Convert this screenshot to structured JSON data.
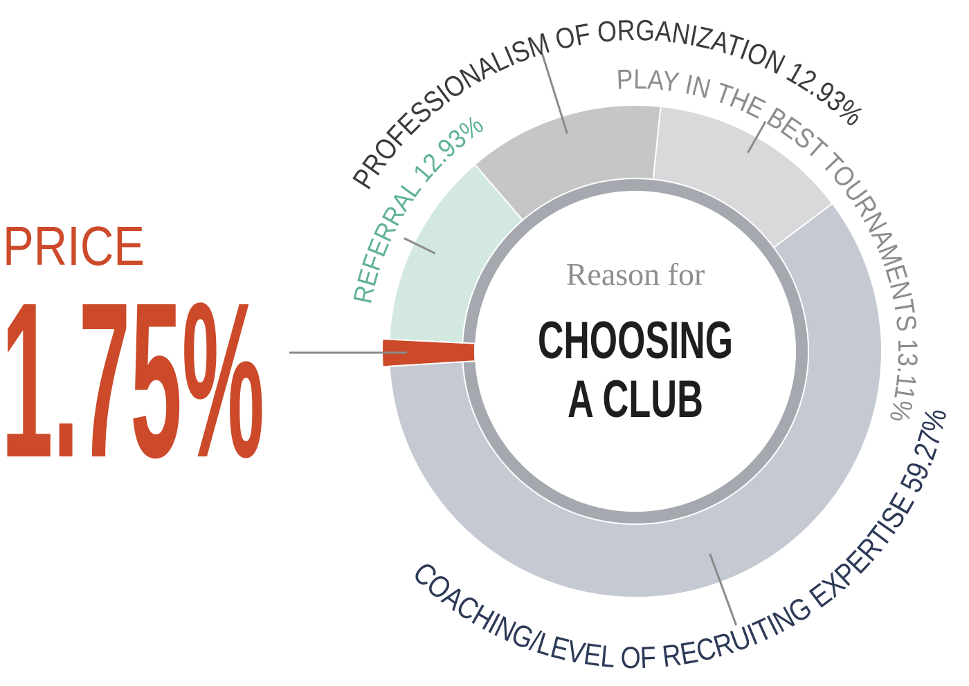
{
  "chart_data": {
    "type": "donut",
    "subtitle": "Reason for",
    "title_lines": [
      "CHOOSING",
      "A CLUB"
    ],
    "categories": [
      "PRICE",
      "REFERRAL",
      "PROFESSIONALISM OF ORGANIZATION",
      "PLAY IN THE BEST TOURNAMENTS",
      "COACHING/LEVEL OF RECRUITING EXPERTISE"
    ],
    "values": [
      1.75,
      12.93,
      12.93,
      13.11,
      59.27
    ],
    "value_labels": [
      "1.75%",
      "12.93%",
      "12.93%",
      "13.11%",
      "59.27%"
    ],
    "colors": [
      "#cc4a2a",
      "#d3e8e0",
      "#c6c6c6",
      "#d9d9db",
      "#c5c9d2"
    ],
    "label_colors": [
      "#cc4a2a",
      "#5fb293",
      "#3b3b3b",
      "#8c8c8c",
      "#2d3a57"
    ]
  }
}
